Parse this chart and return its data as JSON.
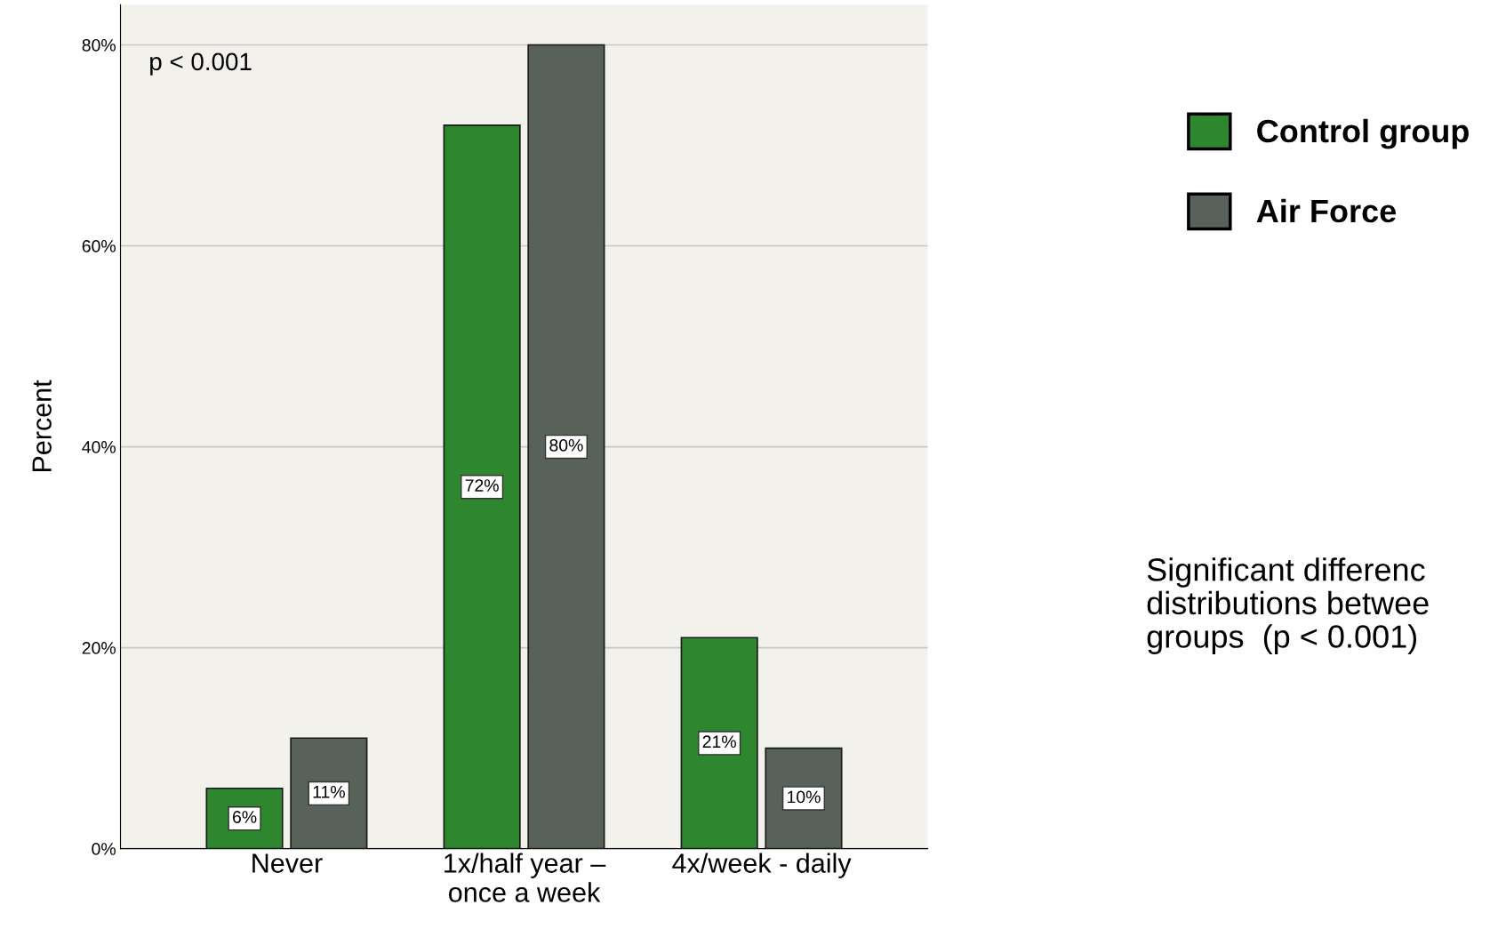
{
  "chart_data": {
    "type": "bar",
    "ylabel": "Percent",
    "categories": [
      "Never",
      "1x/half year –\nonce a week",
      "4x/week - daily"
    ],
    "series": [
      {
        "name": "Control group",
        "color": "#2e872e",
        "values": [
          6,
          72,
          21
        ],
        "value_labels": [
          "6%",
          "72%",
          "21%"
        ]
      },
      {
        "name": "Air Force",
        "color": "#58615a",
        "values": [
          11,
          80,
          10
        ],
        "value_labels": [
          "11%",
          "80%",
          "10%"
        ]
      }
    ],
    "ylim": [
      0,
      84
    ],
    "yticks": [
      {
        "value": 0,
        "label": "0%"
      },
      {
        "value": 20,
        "label": "20%"
      },
      {
        "value": 40,
        "label": "40%"
      },
      {
        "value": 60,
        "label": "60%"
      },
      {
        "value": 80,
        "label": "80%"
      }
    ],
    "grid": "y",
    "legend": "right",
    "annotations": [
      "p < 0.001",
      "Significant differenc\ndistributions betwee\ngroups  (p < 0.001)"
    ]
  }
}
